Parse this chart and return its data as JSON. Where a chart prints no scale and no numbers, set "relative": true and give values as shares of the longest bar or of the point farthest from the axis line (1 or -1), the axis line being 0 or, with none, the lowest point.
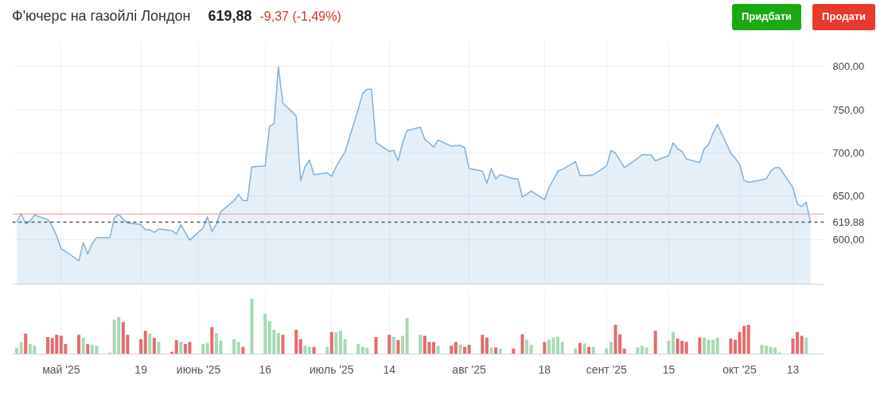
{
  "chart_data": [
    {
      "type": "area",
      "title": "Ф'ючерс на газойлі Лондон",
      "annotations": [
        "619,88",
        "-9,37 (-1,49%)",
        "Придбати",
        "Продати"
      ],
      "x": [
        "2025-04-21",
        "2025-04-22",
        "2025-04-23",
        "2025-04-24",
        "2025-04-25",
        "2025-04-28",
        "2025-04-29",
        "2025-04-30",
        "2025-05-01",
        "2025-05-02",
        "2025-05-05",
        "2025-05-06",
        "2025-05-07",
        "2025-05-08",
        "2025-05-09",
        "2025-05-12",
        "2025-05-13",
        "2025-05-14",
        "2025-05-15",
        "2025-05-16",
        "2025-05-19",
        "2025-05-20",
        "2025-05-21",
        "2025-05-22",
        "2025-05-23",
        "2025-05-26",
        "2025-05-27",
        "2025-05-28",
        "2025-05-29",
        "2025-05-30",
        "2025-06-02",
        "2025-06-03",
        "2025-06-04",
        "2025-06-05",
        "2025-06-06",
        "2025-06-09",
        "2025-06-10",
        "2025-06-11",
        "2025-06-12",
        "2025-06-13",
        "2025-06-16",
        "2025-06-17",
        "2025-06-18",
        "2025-06-19",
        "2025-06-20",
        "2025-06-23",
        "2025-06-24",
        "2025-06-25",
        "2025-06-26",
        "2025-06-27",
        "2025-06-30",
        "2025-07-01",
        "2025-07-02",
        "2025-07-03",
        "2025-07-04",
        "2025-07-07",
        "2025-07-08",
        "2025-07-09",
        "2025-07-10",
        "2025-07-11",
        "2025-07-14",
        "2025-07-15",
        "2025-07-16",
        "2025-07-17",
        "2025-07-18",
        "2025-07-21",
        "2025-07-22",
        "2025-07-24",
        "2025-07-25",
        "2025-07-28",
        "2025-07-30",
        "2025-07-31",
        "2025-08-01",
        "2025-08-04",
        "2025-08-05",
        "2025-08-06",
        "2025-08-07",
        "2025-08-08",
        "2025-08-11",
        "2025-08-12",
        "2025-08-13",
        "2025-08-15",
        "2025-08-18",
        "2025-08-19",
        "2025-08-20",
        "2025-08-21",
        "2025-08-22",
        "2025-08-25",
        "2025-08-26",
        "2025-08-28",
        "2025-08-29",
        "2025-09-01",
        "2025-09-02",
        "2025-09-03",
        "2025-09-05",
        "2025-09-08",
        "2025-09-09",
        "2025-09-11",
        "2025-09-12",
        "2025-09-15",
        "2025-09-16",
        "2025-09-17",
        "2025-09-18",
        "2025-09-19",
        "2025-09-22",
        "2025-09-23",
        "2025-09-24",
        "2025-09-25",
        "2025-09-26",
        "2025-09-29",
        "2025-09-30",
        "2025-10-01",
        "2025-10-02",
        "2025-10-03",
        "2025-10-06",
        "2025-10-07",
        "2025-10-08",
        "2025-10-09",
        "2025-10-10",
        "2025-10-13",
        "2025-10-14",
        "2025-10-15",
        "2025-10-16",
        "2025-10-17"
      ],
      "series": [
        {
          "color": "#7fb1da",
          "values": [
            620,
            630,
            618,
            621,
            628,
            623,
            615,
            604,
            589,
            586,
            575,
            596,
            583,
            595,
            602,
            602,
            625,
            629,
            623,
            619,
            617,
            611,
            611,
            608,
            612,
            610,
            606,
            617,
            608,
            599,
            613,
            626,
            609,
            618,
            632,
            645,
            652,
            645,
            645,
            684,
            685,
            731,
            734,
            800,
            758,
            743,
            668,
            684,
            692,
            675,
            677,
            673,
            684,
            693,
            701,
            751,
            769,
            774,
            774,
            712,
            702,
            703,
            691,
            712,
            726,
            730,
            716,
            707,
            715,
            708,
            709,
            706,
            682,
            679,
            665,
            682,
            670,
            675,
            670,
            670,
            649,
            656,
            646,
            660,
            669,
            679,
            681,
            690,
            674,
            674,
            675,
            685,
            703,
            700,
            683,
            694,
            698,
            698,
            691,
            697,
            712,
            705,
            702,
            693,
            689,
            705,
            710,
            723,
            733,
            700,
            694,
            687,
            668,
            666,
            669,
            670,
            679,
            683,
            683,
            660,
            641,
            638,
            643,
            620
          ]
        }
      ],
      "xlim": [
        "2025-04-20",
        "2025-10-20"
      ],
      "ylim": [
        548,
        829
      ],
      "xticks": [
        {
          "value": "2025-05-01",
          "label": null
        },
        {
          "value": "2025-05-19",
          "label": null
        },
        {
          "value": "2025-06-01",
          "label": null
        },
        {
          "value": "2025-06-16",
          "label": null
        },
        {
          "value": "2025-07-01",
          "label": null
        },
        {
          "value": "2025-07-14",
          "label": null
        },
        {
          "value": "2025-08-01",
          "label": null
        },
        {
          "value": "2025-08-18",
          "label": null
        },
        {
          "value": "2025-09-01",
          "label": null
        },
        {
          "value": "2025-09-15",
          "label": null
        },
        {
          "value": "2025-10-01",
          "label": null
        },
        {
          "value": "2025-10-13",
          "label": null
        }
      ],
      "yticks": [
        {
          "value": 600,
          "label": "600,00"
        },
        {
          "value": 650,
          "label": "650,00"
        },
        {
          "value": 700,
          "label": "700,00"
        },
        {
          "value": 750,
          "label": "750,00"
        },
        {
          "value": 800,
          "label": "800,00"
        }
      ],
      "ref_lines": [
        {
          "axis": "y",
          "value": 629.25,
          "label": null,
          "color": "#f2a7a7",
          "line_style": "solid"
        },
        {
          "axis": "y",
          "value": 619.88,
          "label": "619,88",
          "color": "#555555",
          "line_style": "dashed"
        }
      ],
      "grid": true,
      "tick_labels": "y"
    },
    {
      "type": "bar",
      "relative": true,
      "x": [
        "2025-04-21",
        "2025-04-22",
        "2025-04-23",
        "2025-04-24",
        "2025-04-25",
        "2025-04-28",
        "2025-04-29",
        "2025-04-30",
        "2025-05-01",
        "2025-05-02",
        "2025-05-05",
        "2025-05-06",
        "2025-05-07",
        "2025-05-08",
        "2025-05-09",
        "2025-05-12",
        "2025-05-13",
        "2025-05-14",
        "2025-05-15",
        "2025-05-16",
        "2025-05-19",
        "2025-05-20",
        "2025-05-21",
        "2025-05-22",
        "2025-05-23",
        "2025-05-26",
        "2025-05-27",
        "2025-05-28",
        "2025-05-29",
        "2025-05-30",
        "2025-06-02",
        "2025-06-03",
        "2025-06-04",
        "2025-06-05",
        "2025-06-06",
        "2025-06-09",
        "2025-06-10",
        "2025-06-11",
        "2025-06-12",
        "2025-06-13",
        "2025-06-16",
        "2025-06-17",
        "2025-06-18",
        "2025-06-19",
        "2025-06-20",
        "2025-06-23",
        "2025-06-24",
        "2025-06-25",
        "2025-06-26",
        "2025-06-27",
        "2025-06-30",
        "2025-07-01",
        "2025-07-02",
        "2025-07-03",
        "2025-07-04",
        "2025-07-07",
        "2025-07-08",
        "2025-07-09",
        "2025-07-10",
        "2025-07-11",
        "2025-07-14",
        "2025-07-15",
        "2025-07-16",
        "2025-07-17",
        "2025-07-18",
        "2025-07-21",
        "2025-07-22",
        "2025-07-23",
        "2025-07-24",
        "2025-07-25",
        "2025-07-28",
        "2025-07-29",
        "2025-07-30",
        "2025-07-31",
        "2025-08-01",
        "2025-08-04",
        "2025-08-05",
        "2025-08-06",
        "2025-08-07",
        "2025-08-08",
        "2025-08-11",
        "2025-08-12",
        "2025-08-13",
        "2025-08-14",
        "2025-08-15",
        "2025-08-18",
        "2025-08-19",
        "2025-08-20",
        "2025-08-21",
        "2025-08-22",
        "2025-08-25",
        "2025-08-26",
        "2025-08-27",
        "2025-08-28",
        "2025-08-29",
        "2025-09-01",
        "2025-09-02",
        "2025-09-03",
        "2025-09-04",
        "2025-09-05",
        "2025-09-08",
        "2025-09-09",
        "2025-09-10",
        "2025-09-11",
        "2025-09-12",
        "2025-09-15",
        "2025-09-16",
        "2025-09-17",
        "2025-09-18",
        "2025-09-19",
        "2025-09-22",
        "2025-09-23",
        "2025-09-24",
        "2025-09-25",
        "2025-09-26",
        "2025-09-29",
        "2025-09-30",
        "2025-10-01",
        "2025-10-02",
        "2025-10-03",
        "2025-10-06",
        "2025-10-07",
        "2025-10-08",
        "2025-10-09",
        "2025-10-10",
        "2025-10-13",
        "2025-10-14",
        "2025-10-15",
        "2025-10-16"
      ],
      "values": [
        0.11,
        0.22,
        0.37,
        0.18,
        0.15,
        0.31,
        0.29,
        0.35,
        0.33,
        0.18,
        0.35,
        0.29,
        0.18,
        0.17,
        0.15,
        0.03,
        0.62,
        0.67,
        0.58,
        0.35,
        0.27,
        0.42,
        0.37,
        0.29,
        0.22,
        0.04,
        0.25,
        0.22,
        0.18,
        0.22,
        0.18,
        0.2,
        0.49,
        0.38,
        0.24,
        0.27,
        0.22,
        0.13,
        null,
        1,
        0.73,
        0.6,
        0.44,
        0.38,
        0.35,
        0.44,
        0.27,
        0.15,
        0.13,
        0.13,
        0.13,
        0.4,
        0.4,
        0.42,
        0.27,
        0.18,
        0.13,
        0.11,
        null,
        0.31,
        0.35,
        0.31,
        0.25,
        0.33,
        0.65,
        0.35,
        0.33,
        0.22,
        0.22,
        0.15,
        0.15,
        0.22,
        0.17,
        0.13,
        0.17,
        0.35,
        0.3,
        0.12,
        0.12,
        0.1,
        0.1,
        null,
        0.36,
        0.26,
        0.17,
        0.22,
        0.26,
        0.3,
        0.31,
        0.22,
        0.1,
        0.2,
        0.19,
        0.13,
        0.13,
        0.1,
        0.22,
        0.53,
        0.36,
        0.1,
        0.12,
        0.15,
        0.12,
        null,
        0.42,
        0.24,
        0.4,
        0.28,
        0.24,
        0.22,
        0.3,
        0.3,
        0.26,
        0.26,
        0.3,
        0.28,
        0.26,
        0.4,
        0.51,
        0.53,
        0.17,
        0.15,
        0.13,
        0.12,
        0.03,
        0.28,
        0.4,
        0.33,
        0.3
      ],
      "colors": [
        "#a6d9b3",
        "#a6d9b3",
        "#e46c6c",
        "#a6d9b3",
        "#a6d9b3",
        "#e46c6c",
        "#e46c6c",
        "#e46c6c",
        "#e46c6c",
        "#e46c6c",
        "#e46c6c",
        "#a6d9b3",
        "#e46c6c",
        "#a6d9b3",
        "#a6d9b3",
        "#a6d9b3",
        "#a6d9b3",
        "#a6d9b3",
        "#e46c6c",
        "#e46c6c",
        "#e46c6c",
        "#e46c6c",
        "#a6d9b3",
        "#e46c6c",
        "#a6d9b3",
        "#e46c6c",
        "#e46c6c",
        "#a6d9b3",
        "#e46c6c",
        "#e46c6c",
        "#a6d9b3",
        "#a6d9b3",
        "#e46c6c",
        "#a6d9b3",
        "#a6d9b3",
        "#a6d9b3",
        "#a6d9b3",
        "#e46c6c",
        "#a6d9b3",
        "#a6d9b3",
        "#a6d9b3",
        "#a6d9b3",
        "#a6d9b3",
        "#a6d9b3",
        "#e46c6c",
        "#e46c6c",
        "#e46c6c",
        "#a6d9b3",
        "#a6d9b3",
        "#e46c6c",
        "#a6d9b3",
        "#e46c6c",
        "#a6d9b3",
        "#a6d9b3",
        "#a6d9b3",
        "#a6d9b3",
        "#a6d9b3",
        "#a6d9b3",
        "#a6d9b3",
        "#e46c6c",
        "#e46c6c",
        "#a6d9b3",
        "#e46c6c",
        "#a6d9b3",
        "#a6d9b3",
        "#a6d9b3",
        "#e46c6c",
        "#e46c6c",
        "#e46c6c",
        "#a6d9b3",
        "#e46c6c",
        "#e46c6c",
        "#a6d9b3",
        "#e46c6c",
        "#e46c6c",
        "#e46c6c",
        "#e46c6c",
        "#a6d9b3",
        "#e46c6c",
        "#a6d9b3",
        "#e46c6c",
        "#a6d9b3",
        "#e46c6c",
        "#a6d9b3",
        "#a6d9b3",
        "#e46c6c",
        "#a6d9b3",
        "#a6d9b3",
        "#a6d9b3",
        "#a6d9b3",
        "#a6d9b3",
        "#e46c6c",
        "#a6d9b3",
        "#e46c6c",
        "#a6d9b3",
        "#a6d9b3",
        "#a6d9b3",
        "#e46c6c",
        "#e46c6c",
        "#e46c6c",
        "#a6d9b3",
        "#a6d9b3",
        "#a6d9b3",
        "#a6d9b3",
        "#e46c6c",
        "#a6d9b3",
        "#a6d9b3",
        "#e46c6c",
        "#e46c6c",
        "#e46c6c",
        "#e46c6c",
        "#a6d9b3",
        "#a6d9b3",
        "#a6d9b3",
        "#a6d9b3",
        "#e46c6c",
        "#e46c6c",
        "#e46c6c",
        "#e46c6c",
        "#e46c6c",
        "#a6d9b3",
        "#a6d9b3",
        "#a6d9b3",
        "#a6d9b3",
        "#a6d9b3",
        "#e46c6c",
        "#e46c6c",
        "#e46c6c",
        "#a6d9b3"
      ],
      "xlim": [
        "2025-04-20",
        "2025-10-20"
      ],
      "xticks": [
        {
          "value": "2025-05-01",
          "label": "май '25"
        },
        {
          "value": "2025-05-19",
          "label": "19"
        },
        {
          "value": "2025-06-01",
          "label": "июнь '25"
        },
        {
          "value": "2025-06-16",
          "label": "16"
        },
        {
          "value": "2025-07-01",
          "label": "июль '25"
        },
        {
          "value": "2025-07-14",
          "label": "14"
        },
        {
          "value": "2025-08-01",
          "label": "авг '25"
        },
        {
          "value": "2025-08-18",
          "label": "18"
        },
        {
          "value": "2025-09-01",
          "label": "сент '25"
        },
        {
          "value": "2025-09-15",
          "label": "15"
        },
        {
          "value": "2025-10-01",
          "label": "окт '25"
        },
        {
          "value": "2025-10-13",
          "label": "13"
        }
      ],
      "grid": "x",
      "tick_labels": "x"
    }
  ]
}
